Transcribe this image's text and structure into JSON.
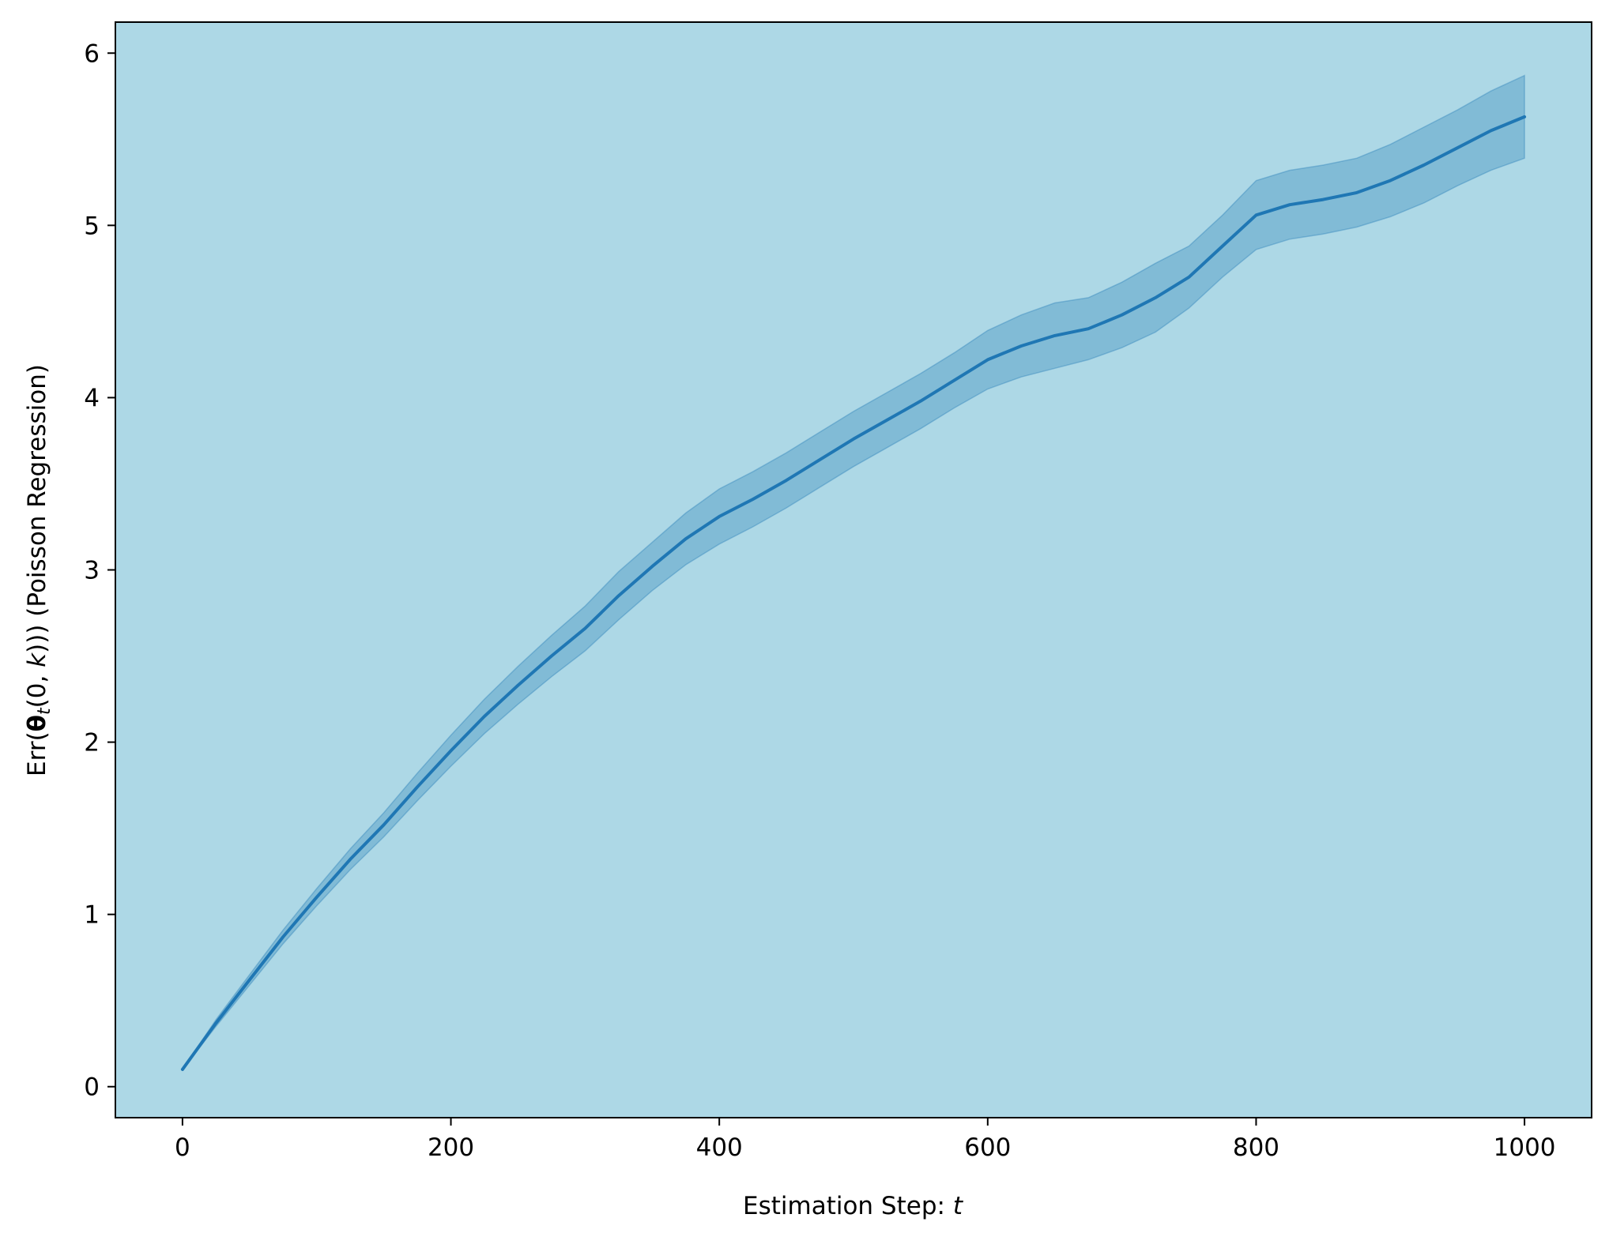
{
  "chart_data": {
    "type": "line",
    "title": "",
    "xlabel": "Estimation Step: t",
    "xlabel_text": "Estimation Step: ",
    "xlabel_var": "t",
    "ylabel": "Err(θt(0, k)) (Poisson Regression)",
    "ylabel_parts": [
      "Err(",
      "θ",
      "t",
      "(0, ",
      "k",
      ")))",
      " (Poisson Regression)"
    ],
    "xlim": [
      -50,
      1050
    ],
    "ylim": [
      -0.18,
      6.18
    ],
    "xticks": [
      0,
      200,
      400,
      600,
      800,
      1000
    ],
    "xtick_labels": [
      "0",
      "200",
      "400",
      "600",
      "800",
      "1000"
    ],
    "yticks": [
      0,
      1,
      2,
      3,
      4,
      5,
      6
    ],
    "ytick_labels": [
      "0",
      "1",
      "2",
      "3",
      "4",
      "5",
      "6"
    ],
    "grid": false,
    "legend": "none",
    "colors": {
      "plot_background": "#add8e6",
      "line": "#1f77b4",
      "band": "#1f77b4"
    },
    "series": [
      {
        "x": [
          0,
          25,
          50,
          75,
          100,
          125,
          150,
          175,
          200,
          225,
          250,
          275,
          300,
          325,
          350,
          375,
          400,
          425,
          450,
          475,
          500,
          525,
          550,
          575,
          600,
          625,
          650,
          675,
          700,
          725,
          750,
          775,
          800,
          825,
          850,
          875,
          900,
          925,
          950,
          975,
          1000
        ],
        "y": [
          0.1,
          0.37,
          0.62,
          0.87,
          1.1,
          1.32,
          1.52,
          1.74,
          1.95,
          2.15,
          2.33,
          2.5,
          2.66,
          2.85,
          3.02,
          3.18,
          3.31,
          3.41,
          3.52,
          3.64,
          3.76,
          3.87,
          3.98,
          4.1,
          4.22,
          4.3,
          4.36,
          4.4,
          4.48,
          4.58,
          4.7,
          4.88,
          5.06,
          5.12,
          5.15,
          5.19,
          5.26,
          5.35,
          5.45,
          5.55,
          5.63
        ],
        "lower": [
          0.1,
          0.35,
          0.59,
          0.83,
          1.05,
          1.26,
          1.45,
          1.66,
          1.86,
          2.05,
          2.22,
          2.38,
          2.53,
          2.71,
          2.88,
          3.03,
          3.15,
          3.25,
          3.36,
          3.48,
          3.6,
          3.71,
          3.82,
          3.94,
          4.05,
          4.12,
          4.17,
          4.22,
          4.29,
          4.38,
          4.52,
          4.7,
          4.86,
          4.92,
          4.95,
          4.99,
          5.05,
          5.13,
          5.23,
          5.32,
          5.39
        ],
        "upper": [
          0.1,
          0.39,
          0.65,
          0.91,
          1.15,
          1.38,
          1.59,
          1.82,
          2.04,
          2.25,
          2.44,
          2.62,
          2.79,
          2.99,
          3.16,
          3.33,
          3.47,
          3.57,
          3.68,
          3.8,
          3.92,
          4.03,
          4.14,
          4.26,
          4.39,
          4.48,
          4.55,
          4.58,
          4.67,
          4.78,
          4.88,
          5.06,
          5.26,
          5.32,
          5.35,
          5.39,
          5.47,
          5.57,
          5.67,
          5.78,
          5.87
        ]
      }
    ]
  }
}
